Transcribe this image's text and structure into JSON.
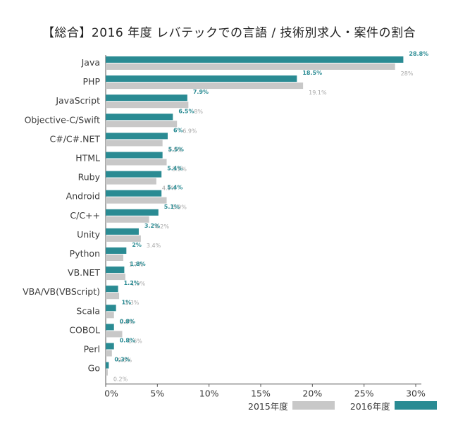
{
  "chart_data": {
    "type": "bar",
    "orientation": "horizontal",
    "title": "【総合】2016 年度 レバテックでの言語 / 技術別求人・案件の割合",
    "categories": [
      "Java",
      "PHP",
      "JavaScript",
      "Objective-C/Swift",
      "C#/C#.NET",
      "HTML",
      "Ruby",
      "Android",
      "C/C++",
      "Unity",
      "Python",
      "VB.NET",
      "VBA/VB(VBScript)",
      "Scala",
      "COBOL",
      "Perl",
      "Go"
    ],
    "series": [
      {
        "name": "2016年度",
        "color": "#2a8b93",
        "values": [
          28.8,
          18.5,
          7.9,
          6.5,
          6,
          5.5,
          5.4,
          5.4,
          5.1,
          3.2,
          2,
          1.8,
          1.2,
          1,
          0.8,
          0.8,
          0.3
        ],
        "labels": [
          "28.8%",
          "18.5%",
          "7.9%",
          "6.5%",
          "6%",
          "5.5%",
          "5.4%",
          "5.4%",
          "5.1%",
          "3.2%",
          "2%",
          "1.8%",
          "1.2%",
          "1%",
          "0.8%",
          "0.8%",
          "0.3%"
        ]
      },
      {
        "name": "2015年度",
        "color": "#c8c8c8",
        "values": [
          28,
          19.1,
          8,
          6.9,
          5.5,
          5.9,
          4.9,
          5.9,
          4.2,
          3.4,
          1.7,
          1.9,
          1.3,
          0.8,
          1.6,
          0.6,
          0.2
        ],
        "labels": [
          "28%",
          "19.1%",
          "8%",
          "6.9%",
          "5.5%",
          "5.9%",
          "4.9%",
          "5.9%",
          "4.2%",
          "3.4%",
          "1.7%",
          "1.9%",
          "1.3%",
          "0.8%",
          "1.6%",
          "0.6%",
          "0.2%"
        ]
      }
    ],
    "xlim": [
      0,
      30
    ],
    "xticks": [
      0,
      5,
      10,
      15,
      20,
      25,
      30
    ],
    "xtick_labels": [
      "0%",
      "5%",
      "10%",
      "15%",
      "20%",
      "25%",
      "30%"
    ],
    "grid": false,
    "legend_position": "bottom-right"
  },
  "legend": {
    "label_2015": "2015年度",
    "label_2016": "2016年度"
  }
}
